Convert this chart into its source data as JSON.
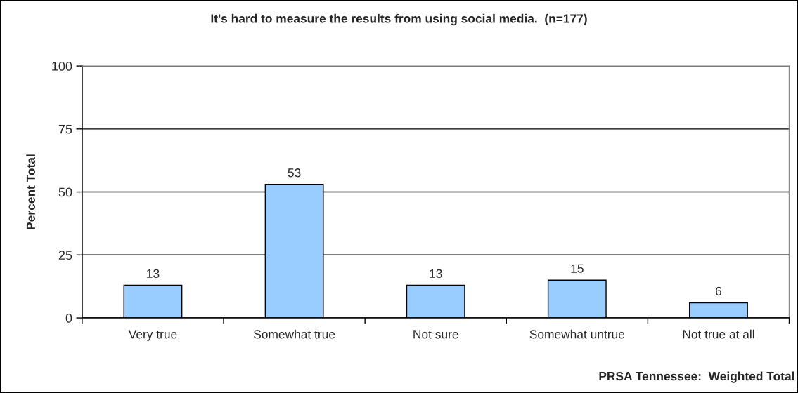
{
  "chart_data": {
    "type": "bar",
    "title": "It's hard to measure the results from using social media.  (n=177)",
    "ylabel": "Percent Total",
    "categories": [
      "Very true",
      "Somewhat true",
      "Not sure",
      "Somewhat untrue",
      "Not true at all"
    ],
    "values": [
      13,
      53,
      13,
      15,
      6
    ],
    "color": "#99ccff",
    "ylim": [
      0,
      100
    ],
    "yticks": [
      0,
      25,
      50,
      75,
      100
    ],
    "grid": "y",
    "data_labels": true,
    "annotations": [
      "PRSA Tennessee:  Weighted Total"
    ]
  }
}
